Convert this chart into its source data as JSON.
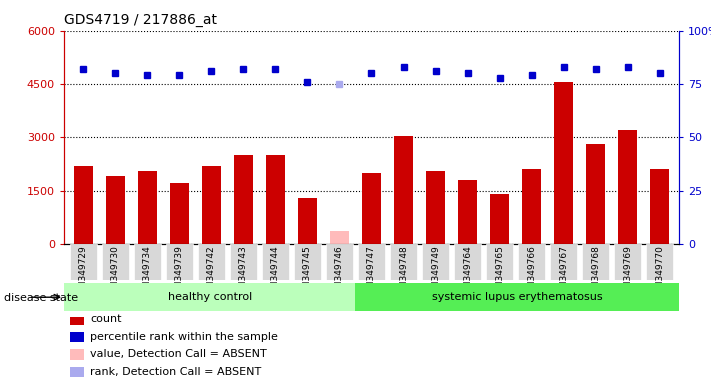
{
  "title": "GDS4719 / 217886_at",
  "samples": [
    "GSM349729",
    "GSM349730",
    "GSM349734",
    "GSM349739",
    "GSM349742",
    "GSM349743",
    "GSM349744",
    "GSM349745",
    "GSM349746",
    "GSM349747",
    "GSM349748",
    "GSM349749",
    "GSM349764",
    "GSM349765",
    "GSM349766",
    "GSM349767",
    "GSM349768",
    "GSM349769",
    "GSM349770"
  ],
  "counts": [
    2200,
    1900,
    2050,
    1700,
    2200,
    2500,
    2500,
    1300,
    null,
    2000,
    3050,
    2050,
    1800,
    1400,
    2100,
    4550,
    2800,
    3200,
    2100
  ],
  "absent_value": 350,
  "absent_idx": 8,
  "ranks": [
    82,
    80,
    79,
    79,
    81,
    82,
    82,
    76,
    null,
    80,
    83,
    81,
    80,
    78,
    79,
    83,
    82,
    83,
    80
  ],
  "absent_rank_value": 75,
  "absent_rank_idx": 8,
  "ylim_left": [
    0,
    6000
  ],
  "ylim_right": [
    0,
    100
  ],
  "yticks_left": [
    0,
    1500,
    3000,
    4500,
    6000
  ],
  "yticks_right": [
    0,
    25,
    50,
    75,
    100
  ],
  "bar_color": "#cc0000",
  "absent_bar_color": "#ffbbbb",
  "rank_color": "#0000cc",
  "absent_rank_color": "#aaaaee",
  "healthy_count": 9,
  "label_healthy": "healthy control",
  "label_lupus": "systemic lupus erythematosus",
  "disease_state_label": "disease state",
  "healthy_color": "#bbffbb",
  "lupus_color": "#55ee55",
  "legend_items": [
    {
      "label": "count",
      "color": "#cc0000"
    },
    {
      "label": "percentile rank within the sample",
      "color": "#0000cc"
    },
    {
      "label": "value, Detection Call = ABSENT",
      "color": "#ffbbbb"
    },
    {
      "label": "rank, Detection Call = ABSENT",
      "color": "#aaaaee"
    }
  ]
}
